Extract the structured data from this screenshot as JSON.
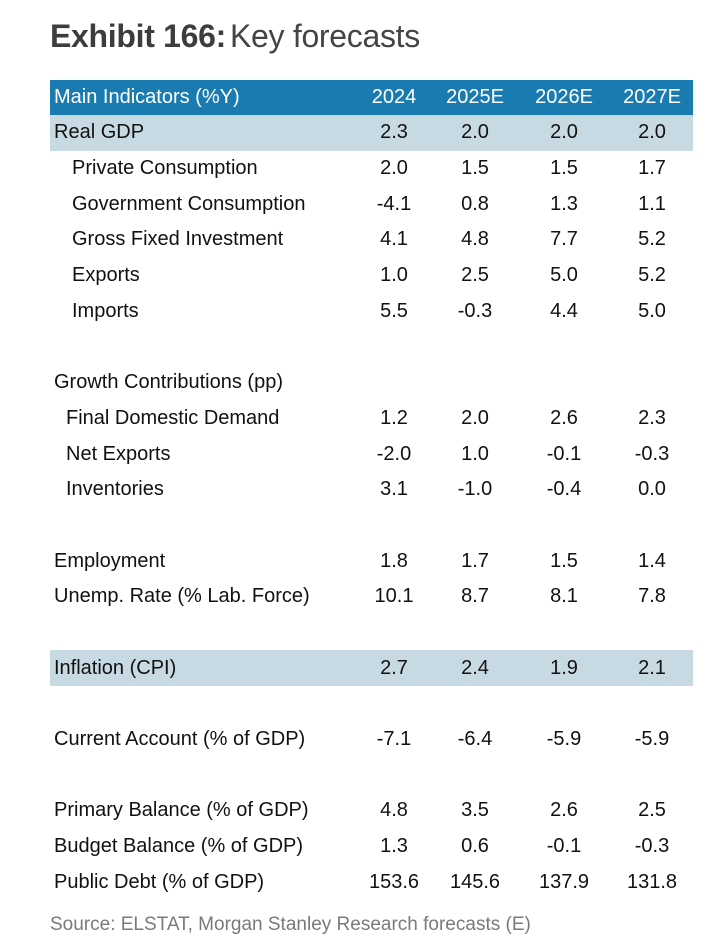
{
  "title": {
    "exhibit": "Exhibit 166:",
    "text": "Key forecasts"
  },
  "colors": {
    "header_bg": "#1a7bb0",
    "highlight_bg": "#c7d9e3"
  },
  "table": {
    "header": {
      "label": "Main Indicators (%Y)",
      "columns": [
        "2024",
        "2025E",
        "2026E",
        "2027E"
      ]
    },
    "rows": [
      {
        "label": "Real GDP",
        "values": [
          "2.3",
          "2.0",
          "2.0",
          "2.0"
        ],
        "indent": 0,
        "highlight": true
      },
      {
        "label": "Private Consumption",
        "values": [
          "2.0",
          "1.5",
          "1.5",
          "1.7"
        ],
        "indent": 1
      },
      {
        "label": "Government Consumption",
        "values": [
          "-4.1",
          "0.8",
          "1.3",
          "1.1"
        ],
        "indent": 1
      },
      {
        "label": "Gross Fixed Investment",
        "values": [
          "4.1",
          "4.8",
          "7.7",
          "5.2"
        ],
        "indent": 1
      },
      {
        "label": "Exports",
        "values": [
          "1.0",
          "2.5",
          "5.0",
          "5.2"
        ],
        "indent": 1
      },
      {
        "label": "Imports",
        "values": [
          "5.5",
          "-0.3",
          "4.4",
          "5.0"
        ],
        "indent": 1
      },
      {
        "spacer": true
      },
      {
        "label": "Growth Contributions (pp)",
        "values": [],
        "indent": 0
      },
      {
        "label": "Final Domestic Demand",
        "values": [
          "1.2",
          "2.0",
          "2.6",
          "2.3"
        ],
        "indent": 2
      },
      {
        "label": "Net Exports",
        "values": [
          "-2.0",
          "1.0",
          "-0.1",
          "-0.3"
        ],
        "indent": 2
      },
      {
        "label": "Inventories",
        "values": [
          "3.1",
          "-1.0",
          "-0.4",
          "0.0"
        ],
        "indent": 2
      },
      {
        "spacer": true
      },
      {
        "label": "Employment",
        "values": [
          "1.8",
          "1.7",
          "1.5",
          "1.4"
        ],
        "indent": 0
      },
      {
        "label": "Unemp. Rate (% Lab. Force)",
        "values": [
          "10.1",
          "8.7",
          "8.1",
          "7.8"
        ],
        "indent": 0
      },
      {
        "spacer": true
      },
      {
        "label": "Inflation (CPI)",
        "values": [
          "2.7",
          "2.4",
          "1.9",
          "2.1"
        ],
        "indent": 0,
        "highlight": true
      },
      {
        "spacer": true
      },
      {
        "label": "Current Account (% of GDP)",
        "values": [
          "-7.1",
          "-6.4",
          "-5.9",
          "-5.9"
        ],
        "indent": 0
      },
      {
        "spacer": true
      },
      {
        "label": "Primary Balance (% of GDP)",
        "values": [
          "4.8",
          "3.5",
          "2.6",
          "2.5"
        ],
        "indent": 0
      },
      {
        "label": "Budget Balance (% of GDP)",
        "values": [
          "1.3",
          "0.6",
          "-0.1",
          "-0.3"
        ],
        "indent": 0
      },
      {
        "label": "Public Debt (% of GDP)",
        "values": [
          "153.6",
          "145.6",
          "137.9",
          "131.8"
        ],
        "indent": 0
      }
    ]
  },
  "source": "Source: ELSTAT, Morgan Stanley Research forecasts (E)"
}
